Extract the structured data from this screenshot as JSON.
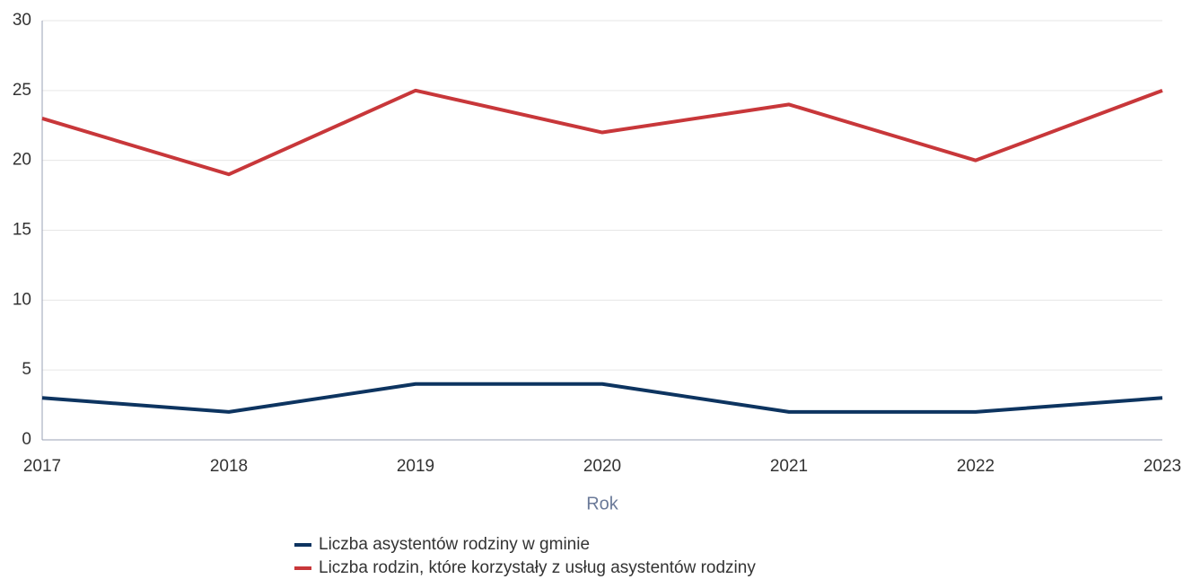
{
  "chart_data": {
    "type": "line",
    "xlabel": "Rok",
    "categories": [
      "2017",
      "2018",
      "2019",
      "2020",
      "2021",
      "2022",
      "2023"
    ],
    "series": [
      {
        "name": "Liczba asystentów rodziny w gminie",
        "color": "#0d3460",
        "values": [
          3,
          2,
          4,
          4,
          2,
          2,
          3
        ]
      },
      {
        "name": "Liczba rodzin, które korzystały z usług asystentów rodziny",
        "color": "#c8373a",
        "values": [
          23,
          19,
          25,
          22,
          24,
          20,
          25
        ]
      }
    ],
    "ylim": [
      0,
      30
    ],
    "yticks": [
      0,
      5,
      10,
      15,
      20,
      25,
      30
    ],
    "grid": true
  }
}
